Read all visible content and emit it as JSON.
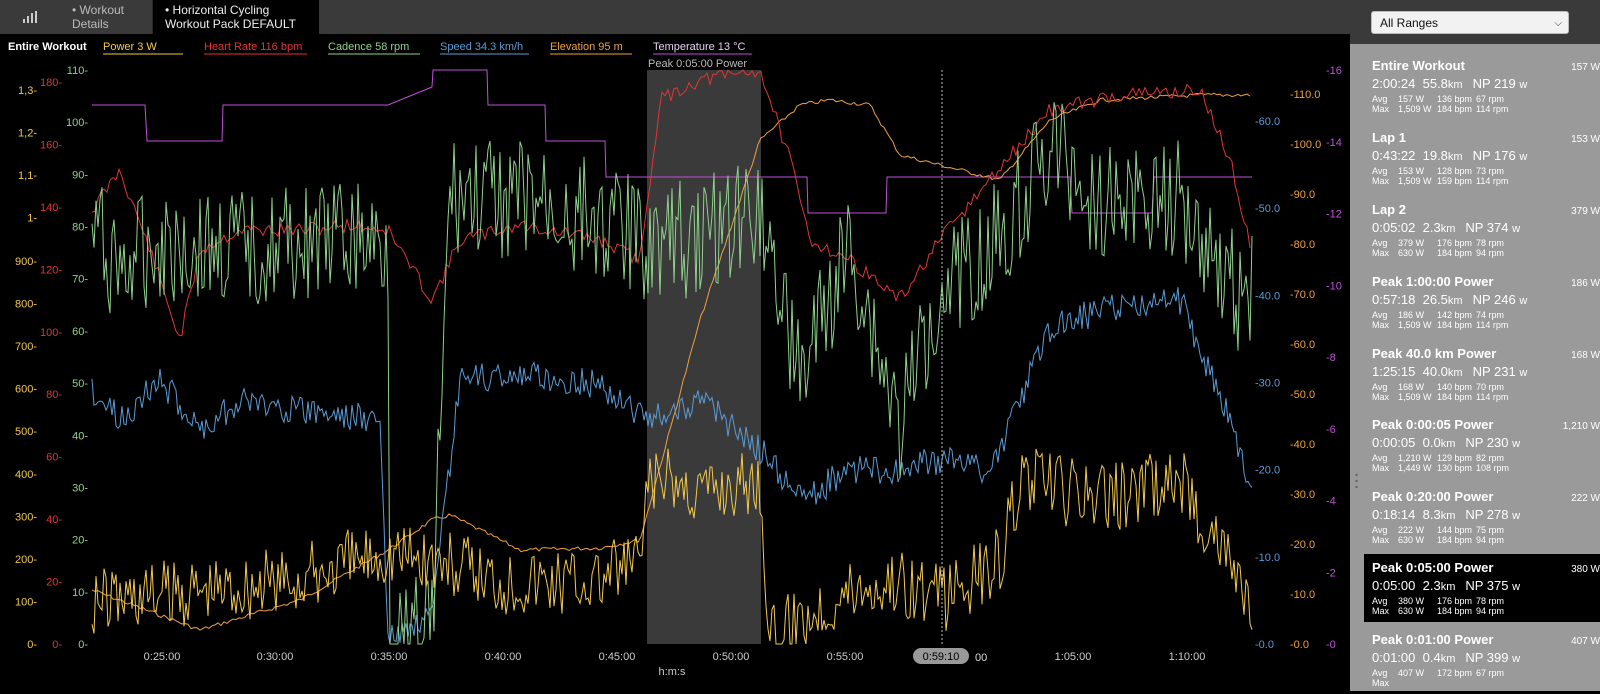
{
  "header": {
    "tab1_label_line1": "• Workout",
    "tab1_label_line2": "Details",
    "tab2_label_line1": "• Horizontal Cycling",
    "tab2_label_line2": "Workout Pack DEFAULT"
  },
  "legend": {
    "entire_workout": "Entire Workout",
    "power": "Power  3 W",
    "heart_rate": "Heart Rate  116 bpm",
    "cadence": "Cadence  58 rpm",
    "speed": "Speed  34.3 km/h",
    "elevation": "Elevation  95 m",
    "temperature": "Temperature  13 °C"
  },
  "colors": {
    "power": "#f2c94c",
    "heart_rate": "#e03535",
    "cadence": "#8fd18b",
    "speed": "#5b9bd5",
    "elevation": "#f0a040",
    "temperature": "#c050d8",
    "highlight": "#3a3a3a"
  },
  "highlight_label": "Peak 0:05:00 Power",
  "x_axis": {
    "label": "h:m:s",
    "ticks": [
      "0:25:00",
      "0:30:00",
      "0:35:00",
      "0:40:00",
      "0:45:00",
      "0:50:00",
      "0:55:00",
      "0:59:10",
      "1:05:00",
      "1:10:00"
    ],
    "cursor_value": "0:59:10",
    "cursor_suffix": "00"
  },
  "axes": {
    "factor_ticks": [
      "1,3-",
      "1,2-",
      "1,1-",
      "1-"
    ],
    "power_ticks": [
      "900-",
      "800-",
      "700-",
      "600-",
      "500-",
      "400-",
      "300-",
      "200-",
      "100-",
      "0-"
    ],
    "hr_ticks": [
      "180-",
      "160-",
      "140-",
      "120-",
      "100-",
      "80-",
      "60-",
      "40-",
      "20-",
      "0-"
    ],
    "cadence_ticks": [
      "110-",
      "100-",
      "90-",
      "80-",
      "70-",
      "60-",
      "50-",
      "40-",
      "30-",
      "20-",
      "10-",
      "0-"
    ],
    "speed_ticks": [
      "-60.0",
      "-50.0",
      "-40.0",
      "-30.0",
      "-20.0",
      "-10.0",
      "-0.0"
    ],
    "elevation_ticks": [
      "-110.0",
      "-100.0",
      "-90.0",
      "-80.0",
      "-70.0",
      "-60.0",
      "-50.0",
      "-40.0",
      "-30.0",
      "-20.0",
      "-10.0",
      "-0.0"
    ],
    "temp_ticks": [
      "-16",
      "-14",
      "-12",
      "-10",
      "-8",
      "-6",
      "-4",
      "-2",
      "-0"
    ]
  },
  "sidebar": {
    "dropdown_value": "All Ranges",
    "ranges": [
      {
        "name": "Entire Workout",
        "avg_power": "157 W",
        "time": "2:00:24",
        "dist": "55.8",
        "dist_unit": "km",
        "np": "NP 219",
        "np_unit": "w",
        "avg": [
          "Avg",
          "157 W",
          "136 bpm",
          "67 rpm"
        ],
        "max": [
          "Max",
          "1,509 W",
          "184 bpm",
          "114 rpm"
        ]
      },
      {
        "name": "Lap 1",
        "avg_power": "153 W",
        "time": "0:43:22",
        "dist": "19.8",
        "dist_unit": "km",
        "np": "NP 176",
        "np_unit": "w",
        "avg": [
          "Avg",
          "153 W",
          "128 bpm",
          "73 rpm"
        ],
        "max": [
          "Max",
          "1,509 W",
          "159 bpm",
          "114 rpm"
        ]
      },
      {
        "name": "Lap 2",
        "avg_power": "379 W",
        "time": "0:05:02",
        "dist": "2.3",
        "dist_unit": "km",
        "np": "NP 374",
        "np_unit": "w",
        "avg": [
          "Avg",
          "379 W",
          "176 bpm",
          "78 rpm"
        ],
        "max": [
          "Max",
          "630 W",
          "184 bpm",
          "94 rpm"
        ]
      },
      {
        "name": "Peak 1:00:00 Power",
        "avg_power": "186 W",
        "time": "0:57:18",
        "dist": "26.5",
        "dist_unit": "km",
        "np": "NP 246",
        "np_unit": "w",
        "avg": [
          "Avg",
          "186 W",
          "142 bpm",
          "74 rpm"
        ],
        "max": [
          "Max",
          "1,509 W",
          "184 bpm",
          "114 rpm"
        ]
      },
      {
        "name": "Peak 40.0 km Power",
        "avg_power": "168 W",
        "time": "1:25:15",
        "dist": "40.0",
        "dist_unit": "km",
        "np": "NP 231",
        "np_unit": "w",
        "avg": [
          "Avg",
          "168 W",
          "140 bpm",
          "70 rpm"
        ],
        "max": [
          "Max",
          "1,509 W",
          "184 bpm",
          "114 rpm"
        ]
      },
      {
        "name": "Peak 0:00:05 Power",
        "avg_power": "1,210 W",
        "time": "0:00:05",
        "dist": "0.0",
        "dist_unit": "km",
        "np": "NP 230",
        "np_unit": "w",
        "avg": [
          "Avg",
          "1,210 W",
          "129 bpm",
          "82 rpm"
        ],
        "max": [
          "Max",
          "1,449 W",
          "130 bpm",
          "108 rpm"
        ]
      },
      {
        "name": "Peak 0:20:00 Power",
        "avg_power": "222 W",
        "time": "0:18:14",
        "dist": "8.3",
        "dist_unit": "km",
        "np": "NP 278",
        "np_unit": "w",
        "avg": [
          "Avg",
          "222 W",
          "144 bpm",
          "75 rpm"
        ],
        "max": [
          "Max",
          "630 W",
          "184 bpm",
          "94 rpm"
        ]
      },
      {
        "name": "Peak 0:05:00 Power",
        "avg_power": "380 W",
        "time": "0:05:00",
        "dist": "2.3",
        "dist_unit": "km",
        "np": "NP 375",
        "np_unit": "w",
        "avg": [
          "Avg",
          "380 W",
          "176 bpm",
          "78 rpm"
        ],
        "max": [
          "Max",
          "630 W",
          "184 bpm",
          "94 rpm"
        ]
      },
      {
        "name": "Peak 0:01:00 Power",
        "avg_power": "407 W",
        "time": "0:01:00",
        "dist": "0.4",
        "dist_unit": "km",
        "np": "NP 399",
        "np_unit": "w",
        "avg": [
          "Avg",
          "407 W",
          "172 bpm",
          "67 rpm"
        ],
        "max": [
          "Max",
          "",
          "",
          ""
        ]
      }
    ]
  }
}
